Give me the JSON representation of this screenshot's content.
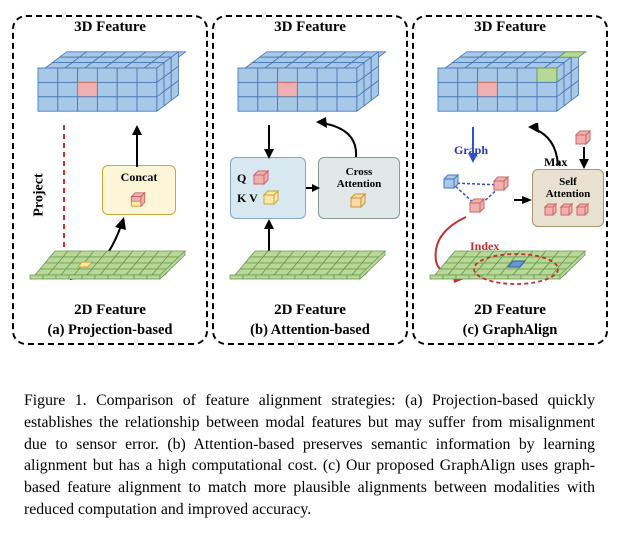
{
  "top_title": "3D Feature",
  "bottom_title": "2D Feature",
  "panels": {
    "a": {
      "sub": "(a) Projection-based",
      "mid": "Concat",
      "side": "Project"
    },
    "b": {
      "sub": "(b) Attention-based",
      "q": "Q",
      "kv": "K V",
      "cross": "Cross Attention"
    },
    "c": {
      "sub": "(c) GraphAlign",
      "graph": "Graph",
      "max": "Max",
      "self": "Self Attention",
      "index": "Index"
    }
  },
  "caption": "Figure 1. Comparison of feature alignment strategies:  (a) Projection-based quickly establishes the relationship between modal features but may suffer from misalignment due to sensor error. (b) Attention-based preserves semantic information by learning alignment but has a high computational cost. (c) Our proposed GraphAlign uses graph-based feature alignment to match more plausible alignments between modalities with reduced computation and improved accuracy.",
  "colors": {
    "blue3d": "#a8c8e8",
    "blue3d_stroke": "#4a7ab8",
    "green2d": "#b8d898",
    "green2d_stroke": "#6a9850",
    "pink": "#f0b0b0",
    "pink_stroke": "#c86868",
    "yellow": "#f8e8a8",
    "yellow_stroke": "#c8a838",
    "concat_bg": "#fdf5d8",
    "qbox_bg": "#d8e8f0",
    "crossbox_bg": "#e0e8e8",
    "selfbox_bg": "#e8e0d0",
    "red_line": "#c83030",
    "blue_line": "#3050c8",
    "graph_txt": "#2838b8",
    "index_txt": "#c03030"
  },
  "grid3d": {
    "cols": 6,
    "rows": 3,
    "depth_cells": 3
  },
  "grid2d": {
    "cols": 10,
    "rows": 4
  }
}
